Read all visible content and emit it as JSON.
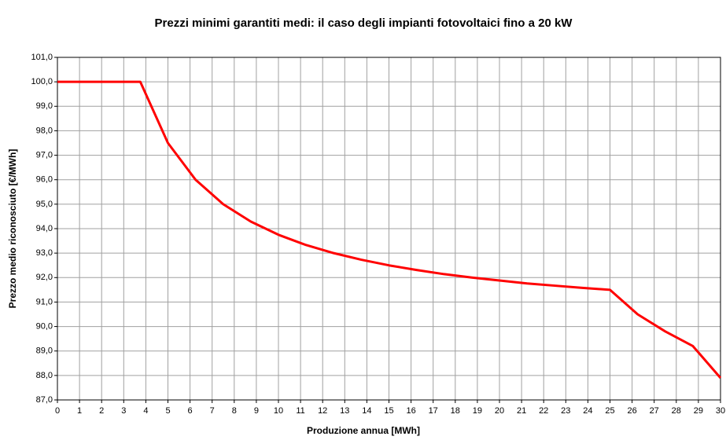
{
  "chart_data": {
    "type": "line",
    "title": "Prezzi minimi garantiti medi: il caso degli impianti fotovoltaici fino a 20 kW",
    "x_label": "Produzione annua [MWh]",
    "y_label": "Prezzo medio riconosciuto [€/MWh]",
    "x": [
      0,
      3.75,
      5,
      6.25,
      7.5,
      8.75,
      10,
      11.25,
      12.5,
      13.75,
      15,
      16.25,
      17.5,
      18.75,
      20,
      21.25,
      22.5,
      23.75,
      25,
      26.25,
      27.5,
      28.75,
      30
    ],
    "series": [
      {
        "color": "#ff0000",
        "values": [
          100,
          100,
          97.5,
          96,
          95,
          94.29,
          93.75,
          93.33,
          93,
          92.73,
          92.5,
          92.31,
          92.14,
          92,
          91.88,
          91.76,
          91.67,
          91.58,
          91.5,
          90.5,
          89.8,
          89.2,
          87.9
        ]
      }
    ],
    "xlim": [
      0,
      30
    ],
    "xticks": [
      0,
      1,
      2,
      3,
      4,
      5,
      6,
      7,
      8,
      9,
      10,
      11,
      12,
      13,
      14,
      15,
      16,
      17,
      18,
      19,
      20,
      21,
      22,
      23,
      24,
      25,
      26,
      27,
      28,
      29,
      30
    ],
    "ylim": [
      87,
      101
    ],
    "yticks": [
      {
        "value": 87,
        "label": "87,0"
      },
      {
        "value": 88,
        "label": "88,0"
      },
      {
        "value": 89,
        "label": "89,0"
      },
      {
        "value": 90,
        "label": "90,0"
      },
      {
        "value": 91,
        "label": "91,0"
      },
      {
        "value": 92,
        "label": "92,0"
      },
      {
        "value": 93,
        "label": "93,0"
      },
      {
        "value": 94,
        "label": "94,0"
      },
      {
        "value": 95,
        "label": "95,0"
      },
      {
        "value": 96,
        "label": "96,0"
      },
      {
        "value": 97,
        "label": "97,0"
      },
      {
        "value": 98,
        "label": "98,0"
      },
      {
        "value": 99,
        "label": "99,0"
      },
      {
        "value": 100,
        "label": "100,0"
      },
      {
        "value": 101,
        "label": "101,0"
      }
    ],
    "grid": true
  }
}
